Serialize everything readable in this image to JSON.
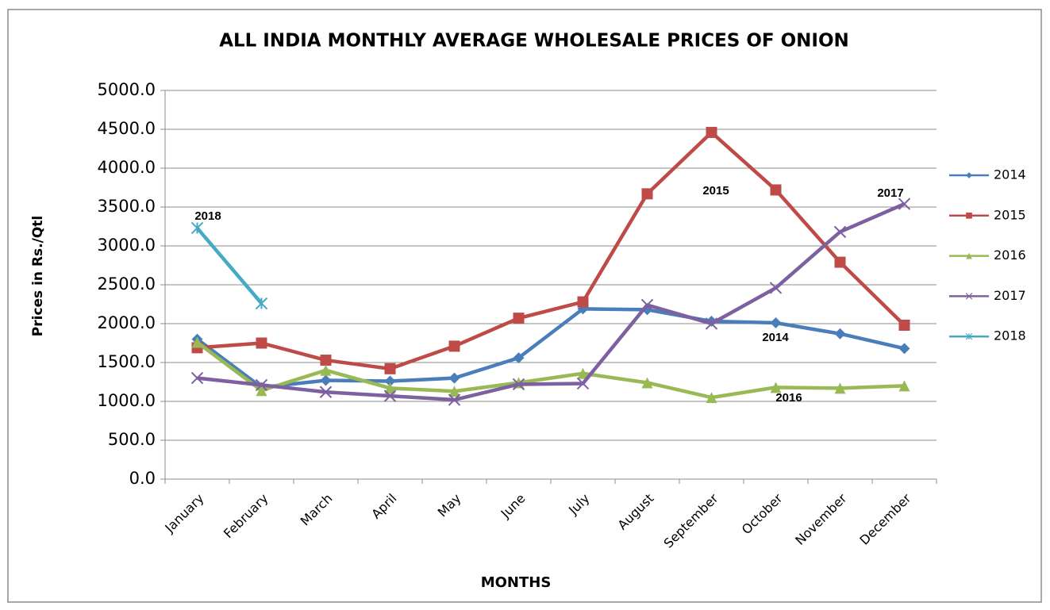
{
  "chart_data": {
    "type": "line",
    "title": "ALL INDIA MONTHLY AVERAGE WHOLESALE PRICES OF ONION",
    "x_label": "MONTHS",
    "y_label": "Prices in Rs./Qtl",
    "categories": [
      "January",
      "February",
      "March",
      "April",
      "May",
      "June",
      "July",
      "August",
      "September",
      "October",
      "November",
      "December"
    ],
    "series": [
      {
        "name": "2014",
        "color": "#4a7ebb",
        "marker": "diamond",
        "values": [
          1800,
          1180,
          1270,
          1260,
          1300,
          1560,
          2190,
          2180,
          2030,
          2010,
          1870,
          1680
        ]
      },
      {
        "name": "2015",
        "color": "#be4b48",
        "marker": "square",
        "values": [
          1690,
          1750,
          1530,
          1420,
          1710,
          2070,
          2280,
          3670,
          4460,
          3720,
          2790,
          1980
        ]
      },
      {
        "name": "2016",
        "color": "#98b954",
        "marker": "triangle",
        "values": [
          1760,
          1140,
          1400,
          1170,
          1130,
          1240,
          1360,
          1240,
          1050,
          1180,
          1170,
          1200
        ]
      },
      {
        "name": "2017",
        "color": "#7d60a0",
        "marker": "x",
        "values": [
          1300,
          1210,
          1120,
          1070,
          1020,
          1220,
          1230,
          2240,
          2000,
          2460,
          3180,
          3540
        ]
      },
      {
        "name": "2018",
        "color": "#46aac5",
        "marker": "star",
        "values": [
          3230,
          2260,
          null,
          null,
          null,
          null,
          null,
          null,
          null,
          null,
          null,
          null
        ]
      }
    ],
    "annotations": [
      "2018",
      "2015",
      "2017",
      "2014",
      "2016"
    ],
    "ylim": [
      0,
      5000
    ],
    "yticks": [
      {
        "value": 0,
        "label": "0.0"
      },
      {
        "value": 500,
        "label": "500.0"
      },
      {
        "value": 1000,
        "label": "1000.0"
      },
      {
        "value": 1500,
        "label": "1500.0"
      },
      {
        "value": 2000,
        "label": "2000.0"
      },
      {
        "value": 2500,
        "label": "2500.0"
      },
      {
        "value": 3000,
        "label": "3000.0"
      },
      {
        "value": 3500,
        "label": "3500.0"
      },
      {
        "value": 4000,
        "label": "4000.0"
      },
      {
        "value": 4500,
        "label": "4500.0"
      },
      {
        "value": 5000,
        "label": "5000.0"
      }
    ],
    "grid": true,
    "legend": "right"
  }
}
